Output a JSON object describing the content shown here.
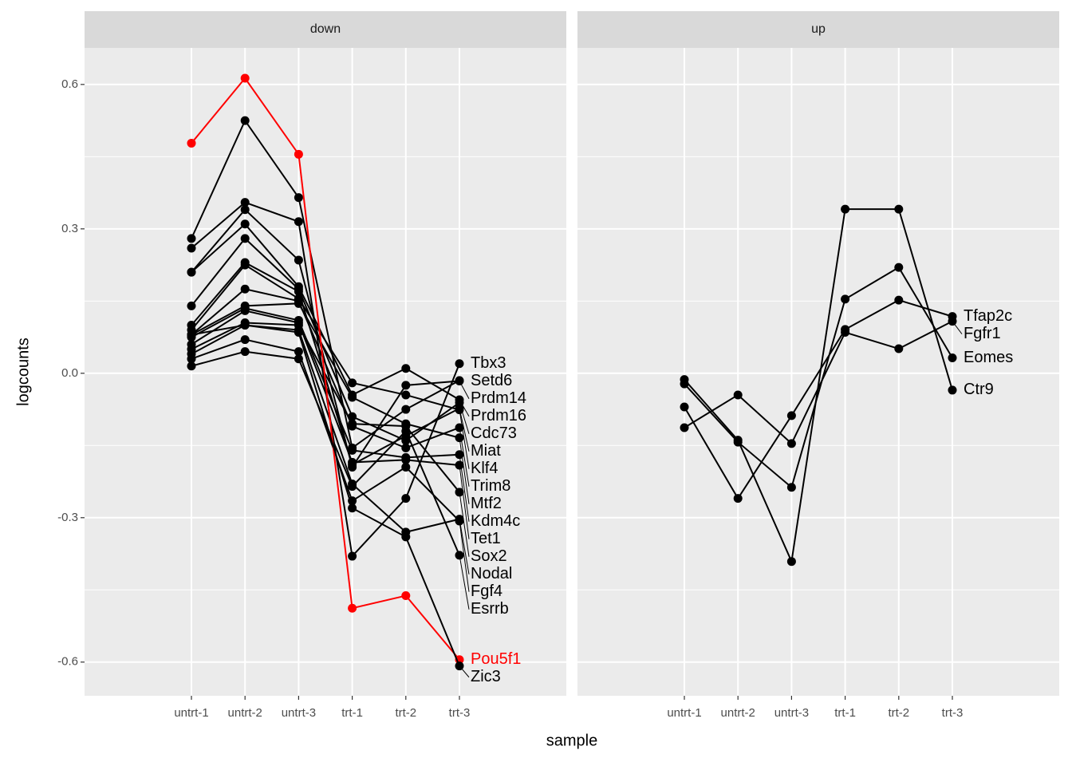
{
  "chart_data": [
    {
      "type": "line",
      "title": "down",
      "x_label": "sample",
      "y_label": "logcounts",
      "categories": [
        "untrt-1",
        "untrt-2",
        "untrt-3",
        "trt-1",
        "trt-2",
        "trt-3"
      ],
      "ylim": [
        -0.67,
        0.676
      ],
      "yticks": [
        -0.6,
        -0.3,
        {
          "value": 0,
          "label": "0.0"
        },
        0.3,
        0.6
      ],
      "series": [
        {
          "name": "Tbx3",
          "color": "#000000",
          "values": [
            0.26,
            0.355,
            0.315,
            -0.38,
            -0.26,
            0.02
          ]
        },
        {
          "name": "Setd6",
          "color": "#000000",
          "values": [
            0.28,
            0.525,
            0.365,
            -0.155,
            -0.075,
            -0.015
          ]
        },
        {
          "name": "Prdm14",
          "color": "#000000",
          "values": [
            0.21,
            0.34,
            0.235,
            -0.195,
            -0.025,
            -0.016
          ]
        },
        {
          "name": "Prdm16",
          "color": "#000000",
          "values": [
            0.21,
            0.31,
            0.18,
            -0.045,
            0.01,
            -0.055
          ]
        },
        {
          "name": "Cdc73",
          "color": "#000000",
          "values": [
            0.14,
            0.28,
            0.175,
            -0.09,
            -0.14,
            -0.061
          ]
        },
        {
          "name": "Miat",
          "color": "#000000",
          "values": [
            0.1,
            0.23,
            0.17,
            -0.19,
            -0.13,
            -0.073
          ]
        },
        {
          "name": "Klf4",
          "color": "#000000",
          "values": [
            0.09,
            0.225,
            0.155,
            -0.02,
            -0.045,
            -0.076
          ]
        },
        {
          "name": "Trim8",
          "color": "#000000",
          "values": [
            0.08,
            0.175,
            0.15,
            -0.11,
            -0.155,
            -0.113
          ]
        },
        {
          "name": "Mtf2",
          "color": "#000000",
          "values": [
            0.08,
            0.14,
            0.145,
            -0.05,
            -0.105,
            -0.134
          ]
        },
        {
          "name": "Kdm4c",
          "color": "#000000",
          "values": [
            0.075,
            0.135,
            0.11,
            -0.16,
            -0.175,
            -0.169
          ]
        },
        {
          "name": "Tet1",
          "color": "#000000",
          "values": [
            0.06,
            0.13,
            0.105,
            -0.185,
            -0.18,
            -0.191
          ]
        },
        {
          "name": "Sox2",
          "color": "#000000",
          "values": [
            0.05,
            0.105,
            0.1,
            -0.105,
            -0.11,
            -0.247
          ]
        },
        {
          "name": "Nodal",
          "color": "#000000",
          "values": [
            0.04,
            0.1,
            0.09,
            -0.23,
            -0.33,
            -0.303
          ]
        },
        {
          "name": "Fgf4",
          "color": "#000000",
          "values": [
            0.03,
            0.07,
            0.045,
            -0.265,
            -0.195,
            -0.307
          ]
        },
        {
          "name": "Esrrb",
          "color": "#000000",
          "values": [
            0.015,
            0.045,
            0.03,
            -0.235,
            -0.12,
            -0.378
          ]
        },
        {
          "name": "Pou5f1",
          "color": "#ff0000",
          "values": [
            0.478,
            0.613,
            0.455,
            -0.488,
            -0.462,
            -0.595
          ]
        },
        {
          "name": "Zic3",
          "color": "#000000",
          "values": [
            0.08,
            0.1,
            0.085,
            -0.28,
            -0.34,
            -0.608
          ]
        }
      ]
    },
    {
      "type": "line",
      "title": "up",
      "categories": [
        "untrt-1",
        "untrt-2",
        "untrt-3",
        "trt-1",
        "trt-2",
        "trt-3"
      ],
      "ylim": [
        -0.67,
        0.676
      ],
      "yticks": [
        -0.6,
        -0.3,
        {
          "value": 0,
          "label": "0.0"
        },
        0.3,
        0.6
      ],
      "series": [
        {
          "name": "Tfap2c",
          "color": "#000000",
          "values": [
            -0.07,
            -0.26,
            -0.088,
            0.091,
            0.152,
            0.118
          ]
        },
        {
          "name": "Fgfr1",
          "color": "#000000",
          "values": [
            -0.113,
            -0.045,
            -0.146,
            0.085,
            0.051,
            0.108
          ]
        },
        {
          "name": "Eomes",
          "color": "#000000",
          "values": [
            -0.022,
            -0.143,
            -0.237,
            0.154,
            0.22,
            0.032
          ]
        },
        {
          "name": "Ctr9",
          "color": "#000000",
          "values": [
            -0.013,
            -0.139,
            -0.391,
            0.341,
            0.341,
            -0.035
          ]
        }
      ]
    }
  ]
}
